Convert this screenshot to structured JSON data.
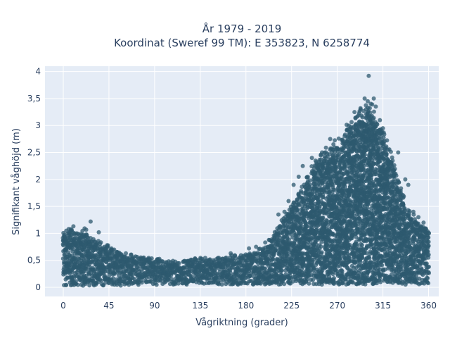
{
  "chart_data": {
    "type": "scatter",
    "title_line1": "År 1979 - 2019",
    "title_line2": "Koordinat (Sweref 99 TM): E 353823, N 6258774",
    "xlabel": "Vågriktning (grader)",
    "ylabel": "Signifikant våghöjd (m)",
    "xlim": [
      -18,
      370
    ],
    "ylim": [
      -0.17,
      4.1
    ],
    "xticks": [
      0,
      45,
      90,
      135,
      180,
      225,
      270,
      315,
      360
    ],
    "yticks": [
      0,
      0.5,
      1,
      1.5,
      2,
      2.5,
      3,
      3.5,
      4
    ],
    "ytick_labels": [
      "0",
      "0,5",
      "1",
      "1,5",
      "2",
      "2,5",
      "3",
      "3,5",
      "4"
    ],
    "grid": true,
    "colors": {
      "marker": "#2e5a6f",
      "plot_bg": "#e5ecf6",
      "text": "#2a3f5f"
    },
    "series": [
      {
        "x": [
          0,
          5,
          10,
          15,
          20,
          25,
          30,
          35,
          40,
          45,
          50,
          55,
          60,
          65,
          70,
          75,
          80,
          85,
          90,
          95,
          100,
          105,
          110,
          115,
          120,
          125,
          130,
          135,
          140,
          145,
          150,
          155,
          160,
          165,
          170,
          175,
          180,
          185,
          190,
          195,
          200,
          205,
          210,
          215,
          220,
          225,
          230,
          235,
          240,
          245,
          250,
          255,
          260,
          265,
          270,
          275,
          280,
          285,
          290,
          295,
          300,
          305,
          310,
          315,
          320,
          325,
          330,
          335,
          340,
          345,
          350,
          355,
          360
        ],
        "y_max": [
          1.05,
          1.12,
          1.1,
          1.0,
          1.22,
          0.98,
          0.96,
          0.9,
          0.85,
          0.8,
          0.75,
          0.72,
          0.68,
          0.65,
          0.62,
          0.6,
          0.58,
          0.57,
          0.55,
          0.54,
          0.53,
          0.52,
          0.52,
          0.53,
          0.54,
          0.55,
          0.56,
          0.56,
          0.57,
          0.58,
          0.58,
          0.58,
          0.58,
          0.6,
          0.62,
          0.64,
          0.66,
          0.68,
          0.7,
          0.75,
          0.85,
          0.95,
          1.1,
          1.3,
          1.45,
          1.6,
          1.75,
          1.95,
          2.1,
          2.3,
          2.45,
          2.55,
          2.65,
          2.75,
          2.8,
          2.9,
          3.05,
          3.2,
          3.3,
          3.45,
          3.5,
          3.4,
          3.2,
          3.0,
          2.7,
          2.5,
          2.1,
          1.8,
          1.5,
          1.4,
          1.3,
          1.2,
          1.1
        ],
        "y_min": [
          0.03,
          0.03,
          0.03,
          0.03,
          0.03,
          0.03,
          0.03,
          0.03,
          0.03,
          0.03,
          0.03,
          0.03,
          0.03,
          0.04,
          0.04,
          0.04,
          0.04,
          0.04,
          0.04,
          0.05,
          0.05,
          0.05,
          0.05,
          0.05,
          0.05,
          0.05,
          0.05,
          0.05,
          0.05,
          0.05,
          0.05,
          0.05,
          0.05,
          0.05,
          0.05,
          0.05,
          0.05,
          0.05,
          0.05,
          0.05,
          0.05,
          0.05,
          0.05,
          0.05,
          0.05,
          0.05,
          0.05,
          0.05,
          0.05,
          0.05,
          0.05,
          0.05,
          0.05,
          0.05,
          0.05,
          0.05,
          0.05,
          0.05,
          0.05,
          0.05,
          0.05,
          0.05,
          0.05,
          0.05,
          0.05,
          0.05,
          0.05,
          0.05,
          0.05,
          0.05,
          0.05,
          0.05,
          0.05
        ],
        "outliers": [
          [
            301,
            3.92
          ],
          [
            297,
            3.5
          ],
          [
            300,
            3.45
          ],
          [
            306,
            3.5
          ],
          [
            293,
            3.3
          ],
          [
            287,
            3.25
          ],
          [
            308,
            3.35
          ],
          [
            312,
            3.1
          ],
          [
            315,
            2.95
          ],
          [
            320,
            2.55
          ],
          [
            310,
            2.9
          ],
          [
            330,
            2.5
          ],
          [
            263,
            2.75
          ],
          [
            255,
            2.5
          ],
          [
            245,
            2.4
          ],
          [
            236,
            2.25
          ],
          [
            232,
            2.05
          ],
          [
            227,
            1.9
          ],
          [
            222,
            1.6
          ],
          [
            340,
            1.9
          ],
          [
            337,
            2.0
          ],
          [
            345,
            1.4
          ],
          [
            350,
            1.3
          ],
          [
            355,
            1.2
          ],
          [
            27,
            1.22
          ],
          [
            10,
            1.13
          ],
          [
            35,
            1.02
          ],
          [
            3,
            1.05
          ],
          [
            183,
            0.72
          ],
          [
            165,
            0.63
          ],
          [
            190,
            0.75
          ],
          [
            199,
            0.83
          ],
          [
            212,
            1.35
          ],
          [
            218,
            1.4
          ]
        ]
      }
    ]
  }
}
